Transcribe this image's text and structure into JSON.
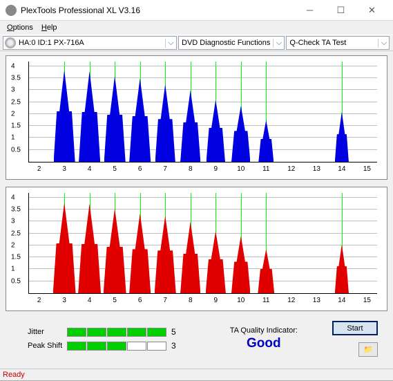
{
  "window": {
    "title": "PlexTools Professional XL V3.16"
  },
  "menus": {
    "options": "Options",
    "help": "Help"
  },
  "toolbar": {
    "drive": "HA:0 ID:1   PX-716A",
    "func": "DVD Diagnostic Functions",
    "test": "Q-Check TA Test"
  },
  "chart": {
    "y_ticks": [
      0.5,
      1,
      1.5,
      2,
      2.5,
      3,
      3.5,
      4
    ],
    "y_max": 4.2,
    "x_ticks": [
      2,
      3,
      4,
      5,
      6,
      7,
      8,
      9,
      10,
      11,
      12,
      13,
      14,
      15
    ],
    "x_min": 1.6,
    "x_max": 15.4,
    "markers": [
      3,
      4,
      5,
      6,
      7,
      8,
      9,
      10,
      11,
      14
    ],
    "top_peaks": [
      {
        "c": 3,
        "w": 0.85,
        "h": 3.85
      },
      {
        "c": 4,
        "w": 0.85,
        "h": 3.8
      },
      {
        "c": 5,
        "w": 0.85,
        "h": 3.6
      },
      {
        "c": 6,
        "w": 0.85,
        "h": 3.5
      },
      {
        "c": 7,
        "w": 0.8,
        "h": 3.25
      },
      {
        "c": 8,
        "w": 0.8,
        "h": 3.0
      },
      {
        "c": 9,
        "w": 0.75,
        "h": 2.6
      },
      {
        "c": 10,
        "w": 0.75,
        "h": 2.35
      },
      {
        "c": 11,
        "w": 0.6,
        "h": 1.75
      },
      {
        "c": 14,
        "w": 0.55,
        "h": 2.1
      }
    ],
    "bottom_peaks": [
      {
        "c": 3,
        "w": 0.9,
        "h": 3.8
      },
      {
        "c": 4,
        "w": 0.9,
        "h": 3.75
      },
      {
        "c": 5,
        "w": 0.9,
        "h": 3.55
      },
      {
        "c": 6,
        "w": 0.85,
        "h": 3.35
      },
      {
        "c": 7,
        "w": 0.85,
        "h": 3.25
      },
      {
        "c": 8,
        "w": 0.8,
        "h": 3.0
      },
      {
        "c": 9,
        "w": 0.8,
        "h": 2.6
      },
      {
        "c": 10,
        "w": 0.75,
        "h": 2.4
      },
      {
        "c": 11,
        "w": 0.65,
        "h": 1.85
      },
      {
        "c": 14,
        "w": 0.55,
        "h": 2.05
      }
    ],
    "top_color": "#0000e0",
    "bottom_color": "#e00000",
    "grid_color": "#c0c0c0"
  },
  "metrics": {
    "jitter_label": "Jitter",
    "jitter_val": "5",
    "jitter_segs": [
      true,
      true,
      true,
      true,
      true
    ],
    "peak_label": "Peak Shift",
    "peak_val": "3",
    "peak_segs": [
      true,
      true,
      true,
      false,
      false
    ]
  },
  "quality": {
    "label": "TA Quality Indicator:",
    "value": "Good"
  },
  "buttons": {
    "start": "Start"
  },
  "status": {
    "text": "Ready"
  }
}
